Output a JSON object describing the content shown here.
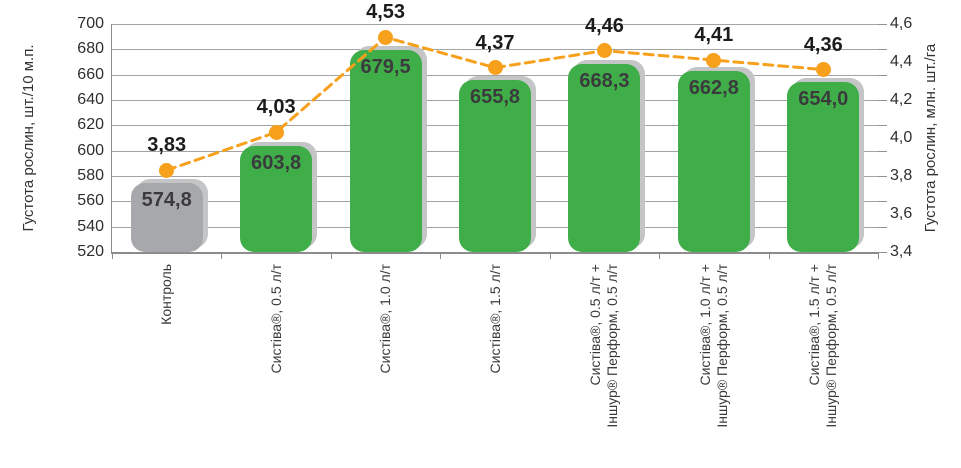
{
  "chart_data": {
    "type": "bar",
    "combo_with_line": true,
    "title": "",
    "legend": "none",
    "grid": true,
    "categories": [
      [
        "Контроль"
      ],
      [
        "Систіва®, 0.5 л/т"
      ],
      [
        "Систіва®, 1.0 л/т"
      ],
      [
        "Систіва®, 1.5 л/т"
      ],
      [
        "Систіва®, 0.5 л/т +",
        "Іншур® Перформ, 0.5 л/т"
      ],
      [
        "Систіва®, 1.0 л/т +",
        "Іншур® Перформ, 0.5 л/т"
      ],
      [
        "Систіва®, 1.5 л/т +",
        "Іншур® Перформ, 0.5 л/т"
      ]
    ],
    "bar_series": {
      "name": "Густота рослин, шт./10 м.п.",
      "axis": "left",
      "values": [
        574.8,
        603.8,
        679.5,
        655.8,
        668.3,
        662.8,
        654.0
      ],
      "labels": [
        "574,8",
        "603,8",
        "679,5",
        "655,8",
        "668,3",
        "662,8",
        "654,0"
      ],
      "bar_colors": [
        "#A6A8AB",
        "#3FAE49",
        "#3FAE49",
        "#3FAE49",
        "#3FAE49",
        "#3FAE49",
        "#3FAE49"
      ]
    },
    "line_series": {
      "name": "Густота рослин, млн. шт./га",
      "axis": "right",
      "values": [
        3.83,
        4.03,
        4.53,
        4.37,
        4.46,
        4.41,
        4.36
      ],
      "labels": [
        "3,83",
        "4,03",
        "4,53",
        "4,37",
        "4,46",
        "4,41",
        "4,36"
      ],
      "style": "dashed",
      "color": "#F7A01C"
    },
    "left_axis": {
      "title": "Густота рослин, шт./10 м.п.",
      "min": 520,
      "max": 700,
      "step": 20,
      "tick_labels": [
        "700",
        "680",
        "660",
        "640",
        "620",
        "600",
        "580",
        "560",
        "540",
        "520"
      ]
    },
    "right_axis": {
      "title": "Густота рослин, млн. шт./га",
      "min": 3.4,
      "max": 4.6,
      "step": 0.2,
      "tick_labels": [
        "4,6",
        "4,4",
        "4,2",
        "4,0",
        "3,8",
        "3,6",
        "3,4"
      ]
    },
    "colors": {
      "bar_green": "#3FAE49",
      "bar_gray": "#A6A8AB",
      "bar_shadow": "#C4C5C7",
      "line_orange": "#F7A01C",
      "gridline": "#A3A3A3",
      "axis_line": "#8C8C8C",
      "bar_label_text": "#3B3B3D",
      "point_label_text": "#1C1C1C",
      "tick_label_text": "#2E2E2E"
    }
  }
}
